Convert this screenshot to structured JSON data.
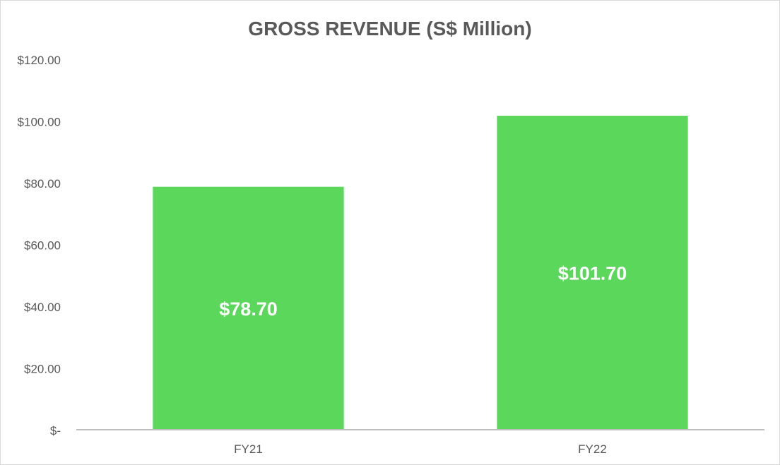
{
  "chart_data": {
    "type": "bar",
    "title": "GROSS REVENUE (S$ Million)",
    "categories": [
      "FY21",
      "FY22"
    ],
    "values": [
      78.7,
      101.7
    ],
    "data_labels": [
      "$78.70",
      "$101.70"
    ],
    "ylim": [
      0,
      120
    ],
    "yticks": [
      0,
      20,
      40,
      60,
      80,
      100,
      120
    ],
    "ytick_labels": [
      "$-",
      "$20.00",
      "$40.00",
      "$60.00",
      "$80.00",
      "$100.00",
      "$120.00"
    ],
    "xlabel": "",
    "ylabel": "",
    "grid": false,
    "legend": "none",
    "colors": {
      "bar": "#5bd75b",
      "axis": "#bfbfbf",
      "text": "#595959",
      "label": "#ffffff"
    }
  }
}
